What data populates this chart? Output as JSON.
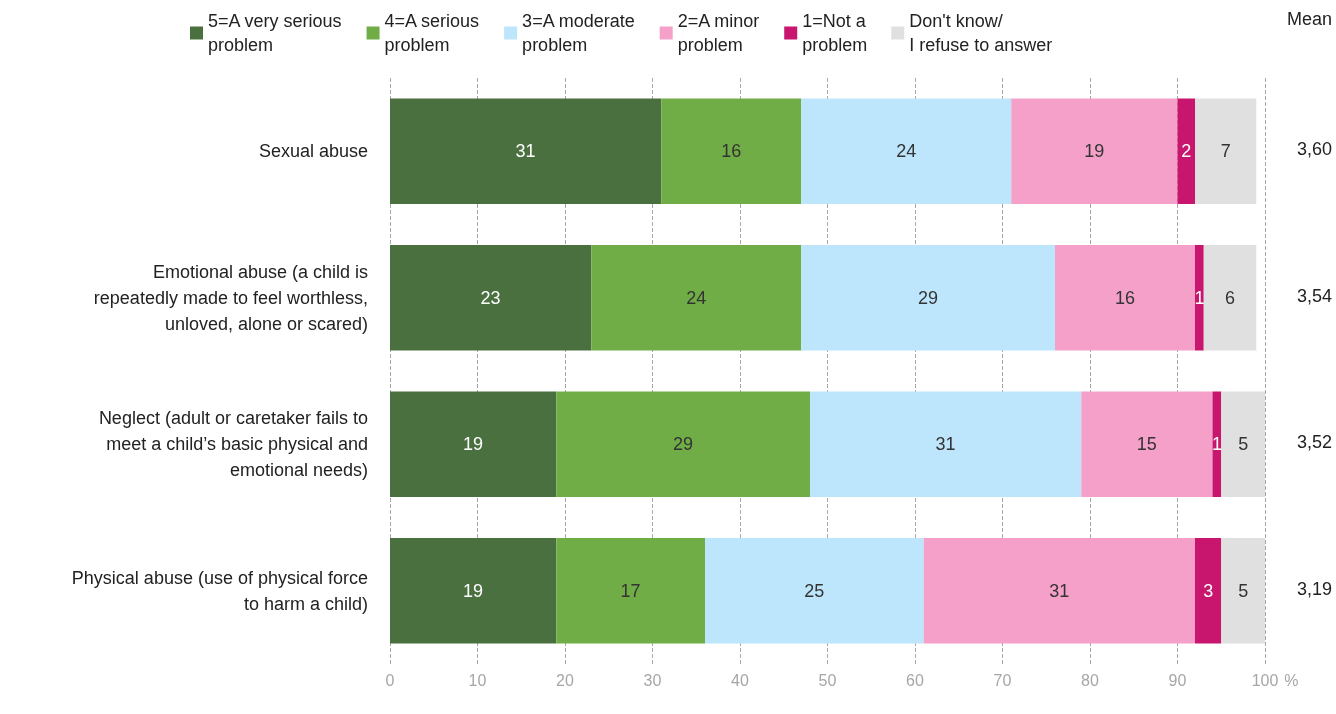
{
  "chart_data": {
    "type": "bar",
    "orientation": "horizontal",
    "stacked": true,
    "data_labels": true,
    "grid": "x",
    "legend": "top",
    "xlabel": "%",
    "categories": [
      "Sexual abuse",
      "Emotional abuse (a child is\nrepeatedly made to feel worthless,\nunloved, alone or scared)",
      "Neglect (adult or caretaker fails to\nmeet a child’s basic physical and\nemotional needs)",
      "Physical abuse (use of physical force\nto harm a child)"
    ],
    "series": [
      {
        "name": "5=A very serious\nproblem",
        "color": "#4a7040",
        "values": [
          31,
          23,
          19,
          19
        ]
      },
      {
        "name": "4=A serious\nproblem",
        "color": "#70ad47",
        "values": [
          16,
          24,
          29,
          17
        ]
      },
      {
        "name": "3=A moderate\nproblem",
        "color": "#bde5fb",
        "values": [
          24,
          29,
          31,
          25
        ]
      },
      {
        "name": "2=A minor\nproblem",
        "color": "#f4a0c8",
        "values": [
          19,
          16,
          15,
          31
        ]
      },
      {
        "name": "1=Not a\nproblem",
        "color": "#c8156e",
        "values": [
          2,
          1,
          1,
          3
        ]
      },
      {
        "name": "Don't know/\nI refuse to answer",
        "color": "#e0e0e0",
        "values": [
          7,
          6,
          5,
          5
        ]
      }
    ],
    "xlim": [
      0,
      100
    ],
    "xticks": [
      0,
      10,
      20,
      30,
      40,
      50,
      60,
      70,
      80,
      90,
      100
    ],
    "annotations": [
      "Mean",
      "3,60",
      "3,54",
      "3,52",
      "3,19"
    ]
  }
}
